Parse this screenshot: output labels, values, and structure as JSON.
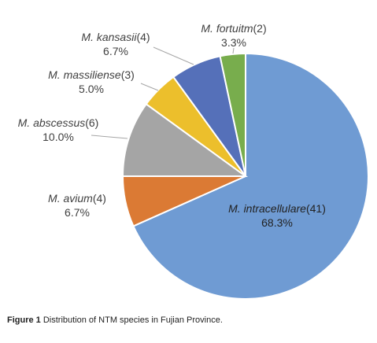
{
  "chart_data": {
    "type": "pie",
    "slices": [
      {
        "species": "M. intracellulare",
        "count": "(41)",
        "percent": "68.3%",
        "value": 41,
        "color": "#6f9bd3"
      },
      {
        "species": "M. avium",
        "count": "(4)",
        "percent": "6.7%",
        "value": 4,
        "color": "#db7a34"
      },
      {
        "species": "M. abscessus",
        "count": "(6)",
        "percent": "10.0%",
        "value": 6,
        "color": "#a5a5a5"
      },
      {
        "species": "M. massiliense",
        "count": "(3)",
        "percent": "5.0%",
        "value": 3,
        "color": "#ecbf2c"
      },
      {
        "species": "M. kansasii",
        "count": "(4)",
        "percent": "6.7%",
        "value": 4,
        "color": "#5570b9"
      },
      {
        "species": "M. fortuitm",
        "count": "(2)",
        "percent": "3.3%",
        "value": 2,
        "color": "#78ad4d"
      }
    ]
  },
  "caption": {
    "label": "Figure 1",
    "text": "Distribution of NTM species in Fujian Province."
  }
}
